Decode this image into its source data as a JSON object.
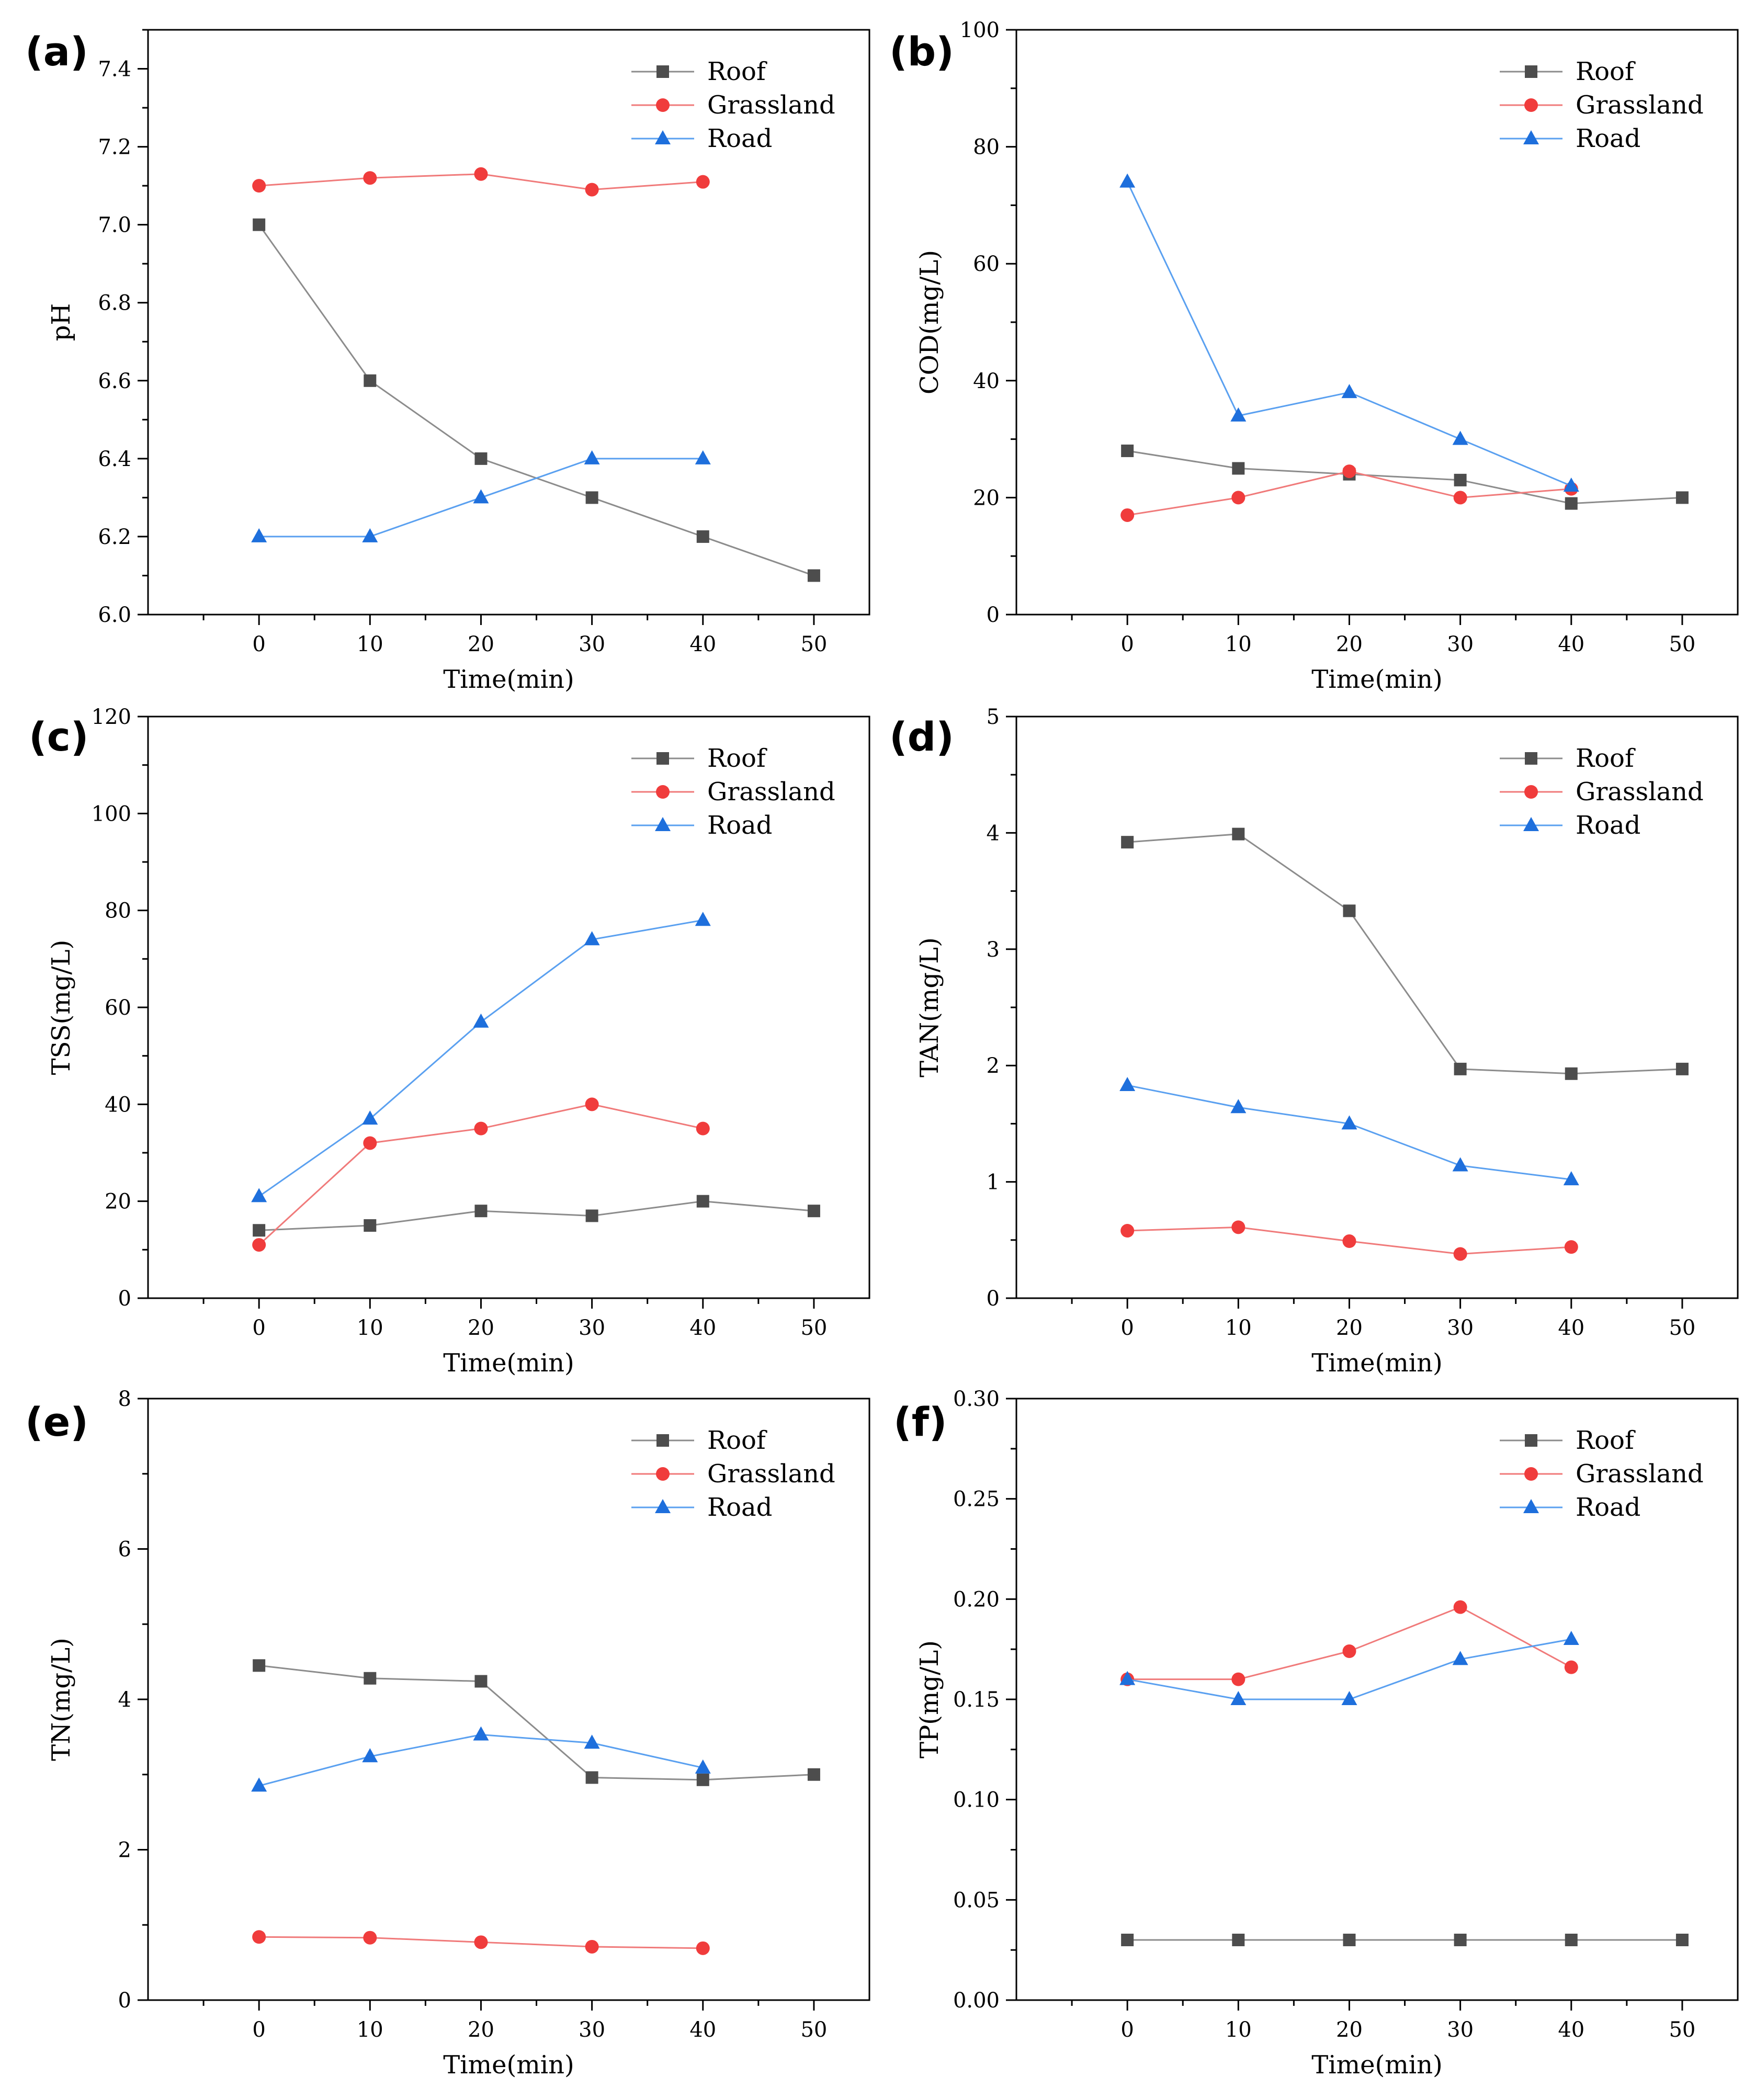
{
  "chart_data": [
    {
      "type": "line",
      "panel_label": "(a)",
      "xlabel": "Time(min)",
      "ylabel": "pH",
      "xlim": [
        -10,
        55
      ],
      "ylim": [
        6.0,
        7.5
      ],
      "xticks": [
        0,
        10,
        20,
        30,
        40,
        50
      ],
      "xtick_labels": [
        "0",
        "10",
        "20",
        "30",
        "40",
        "50"
      ],
      "yticks": [
        6.0,
        6.2,
        6.4,
        6.6,
        6.8,
        7.0,
        7.2,
        7.4
      ],
      "ytick_labels": [
        "6.0",
        "6.2",
        "6.4",
        "6.6",
        "6.8",
        "7.0",
        "7.2",
        "7.4"
      ],
      "legend_position": "top-right",
      "series": [
        {
          "name": "Roof",
          "x": [
            0,
            10,
            20,
            30,
            40,
            50
          ],
          "values": [
            7.0,
            6.6,
            6.4,
            6.3,
            6.2,
            6.1
          ]
        },
        {
          "name": "Grassland",
          "x": [
            0,
            10,
            20,
            30,
            40
          ],
          "values": [
            7.1,
            7.12,
            7.13,
            7.09,
            7.11
          ]
        },
        {
          "name": "Road",
          "x": [
            0,
            10,
            20,
            30,
            40
          ],
          "values": [
            6.2,
            6.2,
            6.3,
            6.4,
            6.4
          ]
        }
      ]
    },
    {
      "type": "line",
      "panel_label": "(b)",
      "xlabel": "Time(min)",
      "ylabel": "COD(mg/L)",
      "xlim": [
        -10,
        55
      ],
      "ylim": [
        0,
        100
      ],
      "xticks": [
        0,
        10,
        20,
        30,
        40,
        50
      ],
      "xtick_labels": [
        "0",
        "10",
        "20",
        "30",
        "40",
        "50"
      ],
      "yticks": [
        0,
        20,
        40,
        60,
        80,
        100
      ],
      "ytick_labels": [
        "0",
        "20",
        "40",
        "60",
        "80",
        "100"
      ],
      "legend_position": "top-right",
      "series": [
        {
          "name": "Roof",
          "x": [
            0,
            10,
            20,
            30,
            40,
            50
          ],
          "values": [
            28,
            25,
            24,
            23,
            19,
            20
          ]
        },
        {
          "name": "Grassland",
          "x": [
            0,
            10,
            20,
            30,
            40
          ],
          "values": [
            17,
            20,
            24.5,
            20,
            21.5
          ]
        },
        {
          "name": "Road",
          "x": [
            0,
            10,
            20,
            30,
            40
          ],
          "values": [
            74,
            34,
            38,
            30,
            22
          ]
        }
      ]
    },
    {
      "type": "line",
      "panel_label": "(c)",
      "xlabel": "Time(min)",
      "ylabel": "TSS(mg/L)",
      "xlim": [
        -10,
        55
      ],
      "ylim": [
        0,
        120
      ],
      "xticks": [
        0,
        10,
        20,
        30,
        40,
        50
      ],
      "xtick_labels": [
        "0",
        "10",
        "20",
        "30",
        "40",
        "50"
      ],
      "yticks": [
        0,
        20,
        40,
        60,
        80,
        100,
        120
      ],
      "ytick_labels": [
        "0",
        "20",
        "40",
        "60",
        "80",
        "100",
        "120"
      ],
      "legend_position": "top-right",
      "series": [
        {
          "name": "Roof",
          "x": [
            0,
            10,
            20,
            30,
            40,
            50
          ],
          "values": [
            14,
            15,
            18,
            17,
            20,
            18
          ]
        },
        {
          "name": "Grassland",
          "x": [
            0,
            10,
            20,
            30,
            40
          ],
          "values": [
            11,
            32,
            35,
            40,
            35
          ]
        },
        {
          "name": "Road",
          "x": [
            0,
            10,
            20,
            30,
            40
          ],
          "values": [
            21,
            37,
            57,
            74,
            78
          ]
        }
      ]
    },
    {
      "type": "line",
      "panel_label": "(d)",
      "xlabel": "Time(min)",
      "ylabel": "TAN(mg/L)",
      "xlim": [
        -10,
        55
      ],
      "ylim": [
        0,
        5
      ],
      "xticks": [
        0,
        10,
        20,
        30,
        40,
        50
      ],
      "xtick_labels": [
        "0",
        "10",
        "20",
        "30",
        "40",
        "50"
      ],
      "yticks": [
        0,
        1,
        2,
        3,
        4,
        5
      ],
      "ytick_labels": [
        "0",
        "1",
        "2",
        "3",
        "4",
        "5"
      ],
      "legend_position": "top-right",
      "series": [
        {
          "name": "Roof",
          "x": [
            0,
            10,
            20,
            30,
            40,
            50
          ],
          "values": [
            3.92,
            3.99,
            3.33,
            1.97,
            1.93,
            1.97
          ]
        },
        {
          "name": "Grassland",
          "x": [
            0,
            10,
            20,
            30,
            40
          ],
          "values": [
            0.58,
            0.61,
            0.49,
            0.38,
            0.44
          ]
        },
        {
          "name": "Road",
          "x": [
            0,
            10,
            20,
            30,
            40
          ],
          "values": [
            1.83,
            1.64,
            1.5,
            1.14,
            1.02
          ]
        }
      ]
    },
    {
      "type": "line",
      "panel_label": "(e)",
      "xlabel": "Time(min)",
      "ylabel": "TN(mg/L)",
      "xlim": [
        -10,
        55
      ],
      "ylim": [
        0,
        8
      ],
      "xticks": [
        0,
        10,
        20,
        30,
        40,
        50
      ],
      "xtick_labels": [
        "0",
        "10",
        "20",
        "30",
        "40",
        "50"
      ],
      "yticks": [
        0,
        2,
        4,
        6,
        8
      ],
      "ytick_labels": [
        "0",
        "2",
        "4",
        "6",
        "8"
      ],
      "legend_position": "top-right",
      "series": [
        {
          "name": "Roof",
          "x": [
            0,
            10,
            20,
            30,
            40,
            50
          ],
          "values": [
            4.45,
            4.28,
            4.24,
            2.96,
            2.93,
            3.0
          ]
        },
        {
          "name": "Grassland",
          "x": [
            0,
            10,
            20,
            30,
            40
          ],
          "values": [
            0.84,
            0.83,
            0.77,
            0.71,
            0.69
          ]
        },
        {
          "name": "Road",
          "x": [
            0,
            10,
            20,
            30,
            40
          ],
          "values": [
            2.85,
            3.24,
            3.53,
            3.42,
            3.09
          ]
        }
      ]
    },
    {
      "type": "line",
      "panel_label": "(f)",
      "xlabel": "Time(min)",
      "ylabel": "TP(mg/L)",
      "xlim": [
        -10,
        55
      ],
      "ylim": [
        0,
        0.3
      ],
      "xticks": [
        0,
        10,
        20,
        30,
        40,
        50
      ],
      "xtick_labels": [
        "0",
        "10",
        "20",
        "30",
        "40",
        "50"
      ],
      "yticks": [
        0,
        0.05,
        0.1,
        0.15,
        0.2,
        0.25,
        0.3
      ],
      "ytick_labels": [
        "0.00",
        "0.05",
        "0.10",
        "0.15",
        "0.20",
        "0.25",
        "0.30"
      ],
      "legend_position": "top-right",
      "series": [
        {
          "name": "Roof",
          "x": [
            0,
            10,
            20,
            30,
            40,
            50
          ],
          "values": [
            0.03,
            0.03,
            0.03,
            0.03,
            0.03,
            0.03
          ]
        },
        {
          "name": "Grassland",
          "x": [
            0,
            10,
            20,
            30,
            40
          ],
          "values": [
            0.16,
            0.16,
            0.174,
            0.196,
            0.166
          ]
        },
        {
          "name": "Road",
          "x": [
            0,
            10,
            20,
            30,
            40
          ],
          "values": [
            0.16,
            0.15,
            0.15,
            0.17,
            0.18
          ]
        }
      ]
    }
  ],
  "style": {
    "axis_color": "#000000",
    "series_markers": {
      "Roof": "square",
      "Grassland": "circle",
      "Road": "triangle"
    },
    "series_marker_colors": {
      "Roof": "#4d4d4d",
      "Grassland": "#f03c3c",
      "Road": "#1e6fdc"
    },
    "series_line_colors": {
      "Roof": "#8c8c8c",
      "Grassland": "#f07a7a",
      "Road": "#5aa0f0"
    }
  }
}
